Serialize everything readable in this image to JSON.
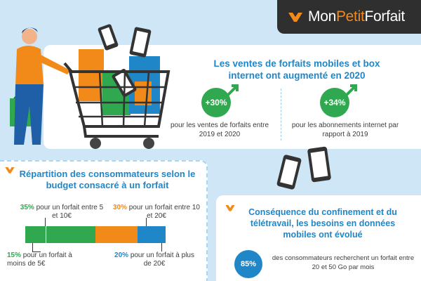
{
  "brand": {
    "prefix": "Mon",
    "accent": "Petit",
    "suffix": "Forfait",
    "icon": "monpetitforfait-logo-icon"
  },
  "colors": {
    "orange": "#f28a1a",
    "green": "#2fa84f",
    "blue": "#1f87c8",
    "dark": "#2f2f2f",
    "background": "#cfe6f7"
  },
  "sales": {
    "title": "Les ventes de forfaits mobiles et box internet ont augmenté en 2020",
    "stat1": {
      "value": "+30%",
      "caption": "pour les ventes de forfaits entre 2019 et 2020",
      "icon": "trend-up-arrow-icon"
    },
    "stat2": {
      "value": "+34%",
      "caption": "pour les abonnements internet par rapport à 2019",
      "icon": "trend-up-arrow-icon"
    }
  },
  "budget": {
    "title": "Répartition des consommateurs selon le budget consacré à un forfait",
    "segments": [
      {
        "pct": "15%",
        "text": "pour un forfait à moins de 5€",
        "share": 15,
        "color": "#2fa84f"
      },
      {
        "pct": "35%",
        "text": "pour un forfait entre 5 et 10€",
        "share": 35,
        "color": "#2fa84f"
      },
      {
        "pct": "30%",
        "text": "pour un forfait entre 10 et 20€",
        "share": 30,
        "color": "#f28a1a"
      },
      {
        "pct": "20%",
        "text": "pour un forfait à plus de 20€",
        "share": 20,
        "color": "#1f87c8"
      }
    ]
  },
  "confinement": {
    "title": "Conséquence du confinement et du télétravail, les besoins en données mobiles ont évolué",
    "stat": {
      "value": "85%",
      "caption": "des consommateurs recherchent un forfait entre 20 et 50 Go par mois"
    }
  }
}
